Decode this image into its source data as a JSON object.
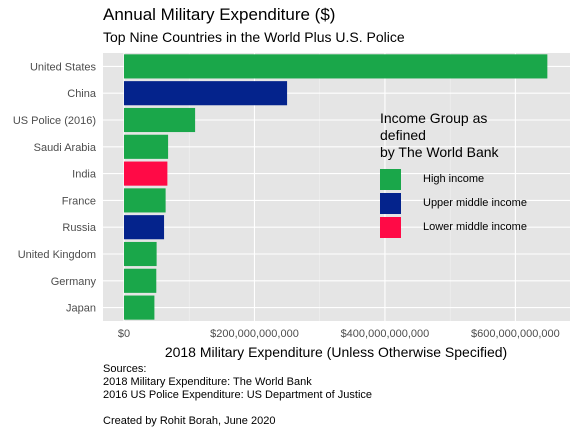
{
  "chart_data": {
    "type": "bar",
    "orientation": "horizontal",
    "title": "Annual Military Expenditure ($)",
    "subtitle": "Top Nine Countries in the World Plus U.S. Police",
    "xlabel": "2018 Military Expenditure (Unless Otherwise Specified)",
    "ylabel": "",
    "xlim": [
      0,
      670000000000
    ],
    "x_ticks": [
      {
        "value": 0,
        "label": "$0"
      },
      {
        "value": 200000000000,
        "label": "$200,000,000,000"
      },
      {
        "value": 400000000000,
        "label": "$400,000,000,000"
      },
      {
        "value": 600000000000,
        "label": "$600,000,000,000"
      }
    ],
    "grid": true,
    "legend_position": "right",
    "legend_title": [
      "Income Group as defined",
      "by The World Bank"
    ],
    "legend": [
      {
        "key": "high",
        "label": "High income",
        "color": "#1aa74a"
      },
      {
        "key": "upper",
        "label": "Upper middle income",
        "color": "#04238c"
      },
      {
        "key": "lower",
        "label": "Lower middle income",
        "color": "#ff0a46"
      }
    ],
    "bars": [
      {
        "category": "United States",
        "value": 649000000000,
        "group": "high"
      },
      {
        "category": "China",
        "value": 250000000000,
        "group": "upper"
      },
      {
        "category": "US Police (2016)",
        "value": 109000000000,
        "group": "high"
      },
      {
        "category": "Saudi Arabia",
        "value": 67600000000,
        "group": "high"
      },
      {
        "category": "India",
        "value": 66500000000,
        "group": "lower"
      },
      {
        "category": "France",
        "value": 63800000000,
        "group": "high"
      },
      {
        "category": "Russia",
        "value": 61400000000,
        "group": "upper"
      },
      {
        "category": "United Kingdom",
        "value": 50000000000,
        "group": "high"
      },
      {
        "category": "Germany",
        "value": 49500000000,
        "group": "high"
      },
      {
        "category": "Japan",
        "value": 46600000000,
        "group": "high"
      }
    ]
  },
  "caption": [
    "Sources:",
    "2018 Military Expenditure: The World Bank",
    "2016 US Police Expenditure: US Department of Justice",
    "",
    "Created by Rohit Borah, June 2020"
  ]
}
